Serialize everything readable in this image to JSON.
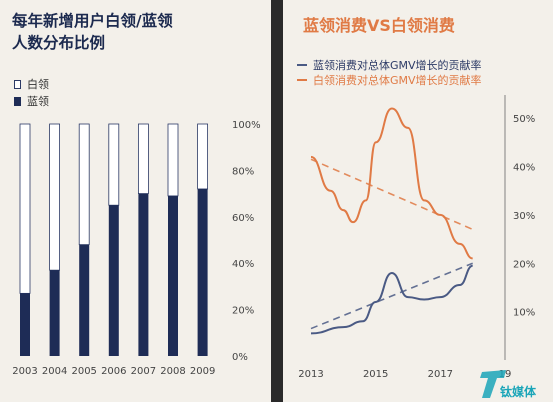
{
  "chart_data": [
    {
      "type": "bar",
      "title": "每年新增用户白领/蓝领人数分布比例",
      "title_lines": [
        "每年新增用户白领/蓝领",
        "人数分布比例"
      ],
      "categories": [
        "2003",
        "2004",
        "2005",
        "2006",
        "2007",
        "2008",
        "2009"
      ],
      "stacked": true,
      "series": [
        {
          "name": "蓝领",
          "color": "#1e2c56",
          "values": [
            27,
            37,
            48,
            65,
            70,
            69,
            72
          ]
        },
        {
          "name": "白领",
          "color": "#ffffff",
          "values": [
            73,
            63,
            52,
            35,
            30,
            31,
            28
          ]
        }
      ],
      "y_ticks": [
        "0%",
        "20%",
        "40%",
        "60%",
        "80%",
        "100%"
      ],
      "ylim": [
        0,
        100
      ],
      "legend_position": "top-left",
      "grid": false
    },
    {
      "type": "line",
      "title": "蓝领消费VS白领消费",
      "x": [
        2013,
        2014,
        2015,
        2016,
        2017,
        2018,
        2019
      ],
      "x_ticks": [
        "2013",
        "2015",
        "2017",
        "19"
      ],
      "y_ticks": [
        "10%",
        "20%",
        "30%",
        "40%",
        "50%"
      ],
      "ylim": [
        0,
        55
      ],
      "series": [
        {
          "name": "蓝领消费对总体GMV增长的贡献率",
          "color": "#4a5a84",
          "points": [
            [
              2013,
              5.5
            ],
            [
              2014,
              6.8
            ],
            [
              2014.6,
              8
            ],
            [
              2015,
              12
            ],
            [
              2015.5,
              18
            ],
            [
              2016,
              13
            ],
            [
              2016.5,
              12.5
            ],
            [
              2017,
              13
            ],
            [
              2017.6,
              15.5
            ],
            [
              2018,
              19.5
            ]
          ],
          "trend": [
            [
              2013,
              6.5
            ],
            [
              2018,
              20
            ]
          ]
        },
        {
          "name": "白领消费对总体GMV增长的贡献率",
          "color": "#e07a45",
          "points": [
            [
              2013,
              42
            ],
            [
              2013.6,
              35
            ],
            [
              2014,
              31
            ],
            [
              2014.3,
              28.5
            ],
            [
              2014.7,
              33
            ],
            [
              2015,
              45
            ],
            [
              2015.5,
              52
            ],
            [
              2016,
              48
            ],
            [
              2016.5,
              33
            ],
            [
              2017,
              30
            ],
            [
              2017.6,
              24
            ],
            [
              2018,
              21
            ]
          ],
          "trend": [
            [
              2013,
              41.5
            ],
            [
              2018,
              27
            ]
          ]
        }
      ],
      "legend_position": "top-left",
      "grid": false
    }
  ],
  "watermark": {
    "text": "钛媒体"
  }
}
